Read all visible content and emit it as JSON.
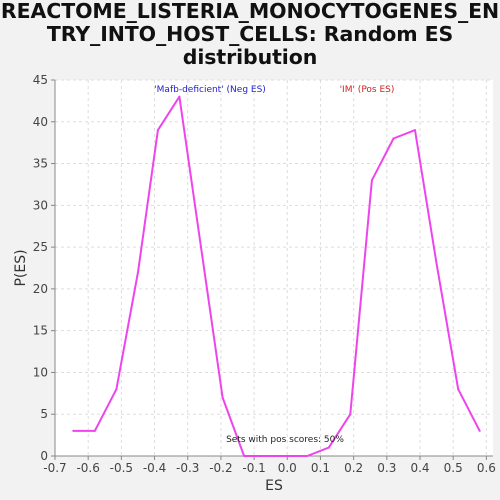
{
  "title": {
    "line1": "REACTOME_LISTERIA_MONOCYTOGENES_EN",
    "line2": "TRY_INTO_HOST_CELLS: Random ES",
    "line3": "distribution"
  },
  "chart_data": {
    "type": "line",
    "title": "REACTOME_LISTERIA_MONOCYTOGENES_ENTRY_INTO_HOST_CELLS: Random ES distribution",
    "xlabel": "ES",
    "ylabel": "P(ES)",
    "xlim": [
      -0.7,
      0.62
    ],
    "ylim": [
      0,
      45
    ],
    "xticks": [
      -0.7,
      -0.6,
      -0.5,
      -0.4,
      -0.3,
      -0.2,
      -0.1,
      0.0,
      0.1,
      0.2,
      0.3,
      0.4,
      0.5,
      0.6
    ],
    "xtick_labels": [
      "-0.7",
      "-0.6",
      "-0.5",
      "-0.4",
      "-0.3",
      "-0.2",
      "-0.1",
      "0.0",
      "0.1",
      "0.2",
      "0.3",
      "0.4",
      "0.5",
      "0.6"
    ],
    "yticks": [
      0,
      5,
      10,
      15,
      20,
      25,
      30,
      35,
      40,
      45
    ],
    "ytick_labels": [
      "0",
      "5",
      "10",
      "15",
      "20",
      "25",
      "30",
      "35",
      "40",
      "45"
    ],
    "grid": true,
    "line_color": "#ee44ee",
    "series": [
      {
        "x": [
          -0.645,
          -0.58,
          -0.515,
          -0.45,
          -0.39,
          -0.325,
          -0.26,
          -0.195,
          -0.13,
          -0.065,
          0.0,
          0.06,
          0.125,
          0.19,
          0.255,
          0.32,
          0.385,
          0.45,
          0.515,
          0.58
        ],
        "y": [
          3,
          3,
          8,
          22,
          39,
          43,
          25,
          7,
          0,
          0,
          0,
          0,
          1,
          5,
          33,
          38,
          39,
          23,
          8,
          3
        ]
      }
    ],
    "annotations": [
      {
        "text": "'Mafb-deficient' (Neg ES)",
        "color": "#2222cc"
      },
      {
        "text": "'IM' (Pos ES)",
        "color": "#cc2222"
      },
      {
        "text": "Sets with pos scores: 50%",
        "color": "#222222"
      }
    ]
  }
}
